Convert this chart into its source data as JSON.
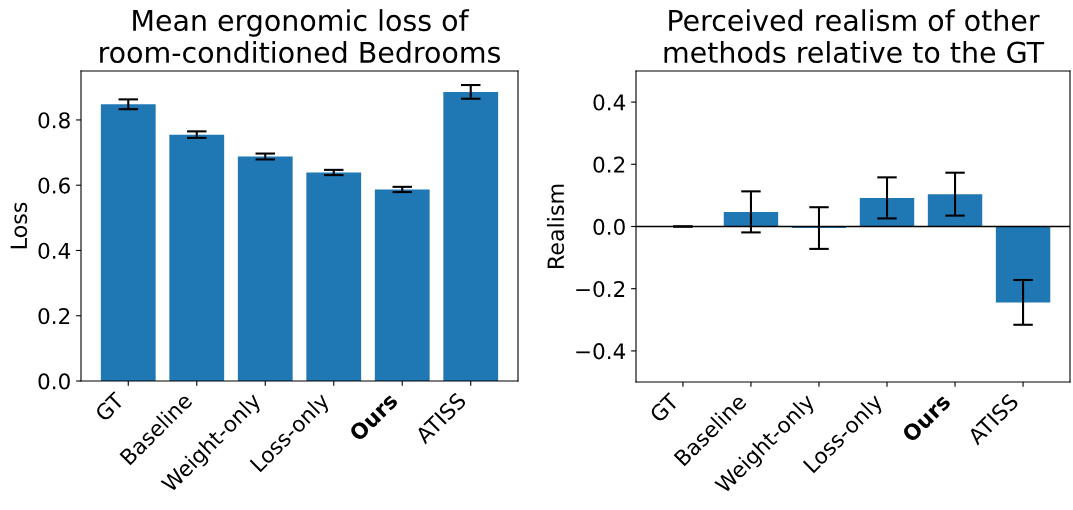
{
  "chart_data": [
    {
      "type": "bar",
      "title": "Mean ergonomic loss of\nroom-conditioned Bedrooms",
      "ylabel": "Loss",
      "categories": [
        "GT",
        "Baseline",
        "Weight-only",
        "Loss-only",
        "Ours",
        "ATISS"
      ],
      "values": [
        0.848,
        0.755,
        0.688,
        0.639,
        0.587,
        0.886
      ],
      "color": "#1f77b4",
      "errors": [
        0.015,
        0.01,
        0.009,
        0.008,
        0.008,
        0.021
      ],
      "ylim": [
        0,
        0.95
      ],
      "yticks": [
        {
          "value": 0,
          "label": "0.0"
        },
        0.2,
        0.4,
        0.6,
        0.8
      ]
    },
    {
      "type": "bar",
      "title": "Perceived realism of other\nmethods relative to the GT",
      "ylabel": "Realism",
      "categories": [
        "GT",
        "Baseline",
        "Weight-only",
        "Loss-only",
        "Ours",
        "ATISS"
      ],
      "values": [
        0,
        0.047,
        -0.005,
        0.092,
        0.104,
        -0.244
      ],
      "color": "#1f77b4",
      "errors": [
        0,
        0.066,
        0.067,
        0.066,
        0.069,
        0.072
      ],
      "ylim": [
        -0.5,
        0.5
      ],
      "yticks": [
        {
          "value": -0.4,
          "label": "−0.4"
        },
        {
          "value": -0.2,
          "label": "−0.2"
        },
        {
          "value": 0,
          "label": "0.0"
        },
        0.2,
        0.4
      ],
      "ref_lines": [
        {
          "axis": "y",
          "value": 0,
          "color": "#000000"
        }
      ]
    }
  ]
}
